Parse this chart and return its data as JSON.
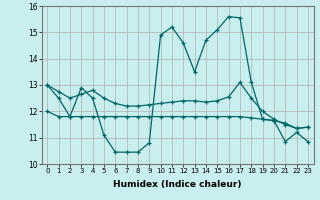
{
  "xlabel": "Humidex (Indice chaleur)",
  "background_color": "#c8eeee",
  "grid_color": "#b0b0b0",
  "line_color": "#006666",
  "xlim": [
    -0.5,
    23.5
  ],
  "ylim": [
    10,
    16
  ],
  "xticks": [
    0,
    1,
    2,
    3,
    4,
    5,
    6,
    7,
    8,
    9,
    10,
    11,
    12,
    13,
    14,
    15,
    16,
    17,
    18,
    19,
    20,
    21,
    22,
    23
  ],
  "yticks": [
    10,
    11,
    12,
    13,
    14,
    15,
    16
  ],
  "line1_x": [
    0,
    1,
    2,
    3,
    4,
    5,
    6,
    7,
    8,
    9,
    10,
    11,
    12,
    13,
    14,
    15,
    16,
    17,
    18,
    19,
    20,
    21,
    22,
    23
  ],
  "line1_y": [
    13.0,
    12.5,
    11.8,
    12.9,
    12.5,
    11.1,
    10.45,
    10.45,
    10.45,
    10.8,
    14.9,
    15.2,
    14.6,
    13.5,
    14.7,
    15.1,
    15.6,
    15.55,
    13.1,
    11.7,
    11.65,
    10.85,
    11.2,
    10.85
  ],
  "line2_x": [
    0,
    1,
    2,
    3,
    4,
    5,
    6,
    7,
    8,
    9,
    10,
    11,
    12,
    13,
    14,
    15,
    16,
    17,
    18,
    19,
    20,
    21,
    22,
    23
  ],
  "line2_y": [
    13.0,
    12.75,
    12.5,
    12.65,
    12.8,
    12.5,
    12.3,
    12.2,
    12.2,
    12.25,
    12.3,
    12.35,
    12.4,
    12.4,
    12.35,
    12.4,
    12.55,
    13.1,
    12.5,
    12.0,
    11.7,
    11.5,
    11.35,
    11.4
  ],
  "line3_x": [
    0,
    1,
    2,
    3,
    4,
    5,
    6,
    7,
    8,
    9,
    10,
    11,
    12,
    13,
    14,
    15,
    16,
    17,
    18,
    19,
    20,
    21,
    22,
    23
  ],
  "line3_y": [
    12.0,
    11.8,
    11.8,
    11.8,
    11.8,
    11.8,
    11.8,
    11.8,
    11.8,
    11.8,
    11.8,
    11.8,
    11.8,
    11.8,
    11.8,
    11.8,
    11.8,
    11.8,
    11.75,
    11.7,
    11.65,
    11.55,
    11.35,
    11.4
  ]
}
